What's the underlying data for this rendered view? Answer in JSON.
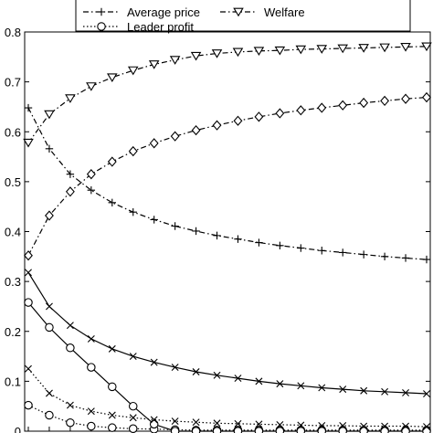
{
  "chart_data": {
    "type": "line",
    "title": "",
    "xlabel": "",
    "ylabel": "",
    "xlim": [
      1,
      20
    ],
    "ylim": [
      0,
      0.8
    ],
    "yticks": [
      "0.8",
      "0.7",
      "0.6",
      "0.5",
      "0.4",
      "0.3",
      "0.2",
      "0.1",
      "0"
    ],
    "grid": false,
    "legend_position": "top",
    "x": [
      1,
      2,
      3,
      4,
      5,
      6,
      7,
      8,
      9,
      10,
      11,
      12,
      13,
      14,
      15,
      16,
      17,
      18,
      19,
      20
    ],
    "series": [
      {
        "name": "Average price",
        "marker": "plus",
        "dash": "6,3,1.5,3",
        "values": [
          0.648,
          0.566,
          0.515,
          0.483,
          0.458,
          0.439,
          0.424,
          0.411,
          0.401,
          0.392,
          0.385,
          0.378,
          0.372,
          0.367,
          0.362,
          0.358,
          0.354,
          0.35,
          0.347,
          0.344
        ]
      },
      {
        "name": "Welfare",
        "marker": "triangle-down",
        "dash": "6,3,1.5,3",
        "values": [
          0.578,
          0.635,
          0.667,
          0.691,
          0.709,
          0.723,
          0.735,
          0.744,
          0.752,
          0.757,
          0.76,
          0.762,
          0.763,
          0.765,
          0.766,
          0.767,
          0.768,
          0.769,
          0.77,
          0.771
        ]
      },
      {
        "name": "Leader profit",
        "marker": "circle",
        "dash": "1.5,2.5",
        "values": [
          0.052,
          0.032,
          0.017,
          0.01,
          0.007,
          0.005,
          0.004,
          0.003,
          0.002,
          0.002,
          0.002,
          0.002,
          0.002,
          0.002,
          0.002,
          0.002,
          0.002,
          0.002,
          0.002,
          0.002
        ]
      },
      {
        "name": "",
        "marker": "diamond",
        "dash": "6,3,1.5,3",
        "values": [
          0.352,
          0.432,
          0.48,
          0.515,
          0.54,
          0.561,
          0.577,
          0.591,
          0.603,
          0.613,
          0.622,
          0.63,
          0.637,
          0.643,
          0.648,
          0.653,
          0.658,
          0.662,
          0.666,
          0.669
        ]
      },
      {
        "name": "",
        "marker": "x",
        "dash": "",
        "values": [
          0.318,
          0.25,
          0.212,
          0.185,
          0.165,
          0.15,
          0.138,
          0.128,
          0.119,
          0.112,
          0.106,
          0.1,
          0.095,
          0.091,
          0.087,
          0.084,
          0.081,
          0.079,
          0.077,
          0.075
        ]
      },
      {
        "name": "",
        "marker": "circle",
        "dash": "",
        "values": [
          0.258,
          0.208,
          0.167,
          0.128,
          0.089,
          0.05,
          0.014,
          0.0,
          0.0,
          0.0,
          0.0,
          0.0,
          0.0,
          0.0,
          0.0,
          0.0,
          0.0,
          0.0,
          0.0,
          0.0
        ]
      },
      {
        "name": "",
        "marker": "x",
        "dash": "1.5,2.5",
        "values": [
          0.125,
          0.076,
          0.052,
          0.04,
          0.032,
          0.027,
          0.023,
          0.02,
          0.018,
          0.016,
          0.015,
          0.014,
          0.013,
          0.012,
          0.011,
          0.011,
          0.01,
          0.01,
          0.01,
          0.009
        ]
      }
    ]
  }
}
